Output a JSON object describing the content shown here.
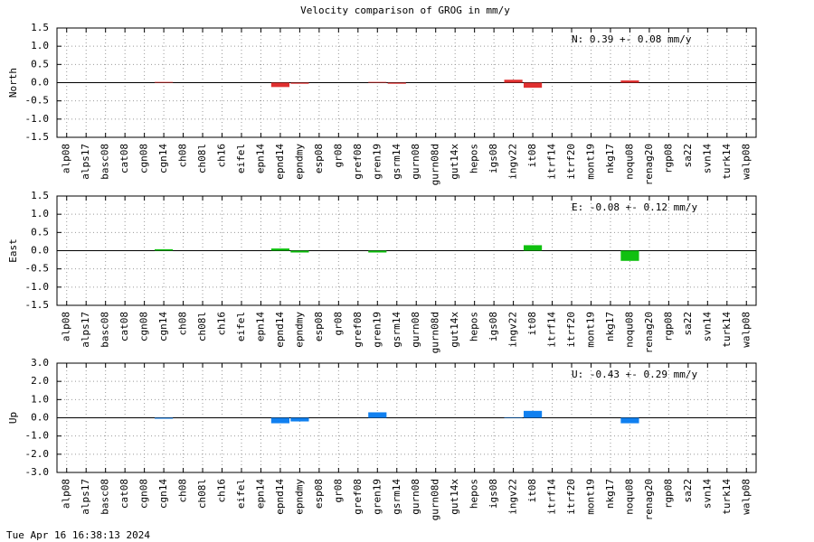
{
  "chart_data": [
    {
      "type": "bar",
      "title": "Velocity comparison of GROG in mm/y",
      "ylabel": "North",
      "annotation": "N:   0.39 +-  0.08 mm/y",
      "categories": [
        "alp08",
        "alps17",
        "basc08",
        "cat08",
        "cgn08",
        "cgn14",
        "ch08",
        "ch08l",
        "ch16",
        "eifel",
        "epn14",
        "epnd14",
        "epndmy",
        "esp08",
        "gr08",
        "gref08",
        "gren19",
        "gsrm14",
        "gurn08",
        "gurn08d",
        "gut14x",
        "hepos",
        "igs08",
        "ingv22",
        "it08",
        "itrf14",
        "itrf20",
        "mont19",
        "nkg17",
        "noqu08",
        "renag20",
        "rgp08",
        "sa22",
        "svn14",
        "turk14",
        "walp08"
      ],
      "values": [
        0,
        0,
        0,
        0,
        0,
        0.02,
        0,
        0,
        0,
        0,
        0,
        -0.12,
        -0.03,
        0,
        0,
        0,
        0.02,
        -0.03,
        0,
        0,
        0,
        0,
        0,
        0.08,
        -0.14,
        0,
        0,
        0,
        0,
        0.06,
        0,
        0,
        0,
        0,
        0,
        0
      ],
      "color": "#e03030",
      "ylim": [
        -1.5,
        1.5
      ],
      "yticks": [
        -1.5,
        {
          "value": -1,
          "label": "-1.0"
        },
        -0.5,
        {
          "value": 0,
          "label": "0.0"
        },
        0.5,
        {
          "value": 1,
          "label": "1.0"
        },
        1.5
      ],
      "grid": true
    },
    {
      "type": "bar",
      "ylabel": "East",
      "annotation": "E:  -0.08 +-  0.12 mm/y",
      "categories": [
        "alp08",
        "alps17",
        "basc08",
        "cat08",
        "cgn08",
        "cgn14",
        "ch08",
        "ch08l",
        "ch16",
        "eifel",
        "epn14",
        "epnd14",
        "epndmy",
        "esp08",
        "gr08",
        "gref08",
        "gren19",
        "gsrm14",
        "gurn08",
        "gurn08d",
        "gut14x",
        "hepos",
        "igs08",
        "ingv22",
        "it08",
        "itrf14",
        "itrf20",
        "mont19",
        "nkg17",
        "noqu08",
        "renag20",
        "rgp08",
        "sa22",
        "svn14",
        "turk14",
        "walp08"
      ],
      "values": [
        0,
        0,
        0,
        0,
        0,
        0.04,
        0,
        0,
        0,
        0,
        0,
        0.06,
        -0.05,
        0,
        0,
        0,
        -0.05,
        0,
        0,
        0,
        0,
        0,
        0,
        0,
        0.15,
        0,
        0,
        0,
        0,
        -0.28,
        0,
        0,
        0,
        0,
        0,
        0
      ],
      "color": "#10c010",
      "ylim": [
        -1.5,
        1.5
      ],
      "yticks": [
        -1.5,
        {
          "value": -1,
          "label": "-1.0"
        },
        -0.5,
        {
          "value": 0,
          "label": "0.0"
        },
        0.5,
        {
          "value": 1,
          "label": "1.0"
        },
        1.5
      ],
      "grid": true
    },
    {
      "type": "bar",
      "ylabel": "Up",
      "annotation": "U:  -0.43 +-  0.29 mm/y",
      "categories": [
        "alp08",
        "alps17",
        "basc08",
        "cat08",
        "cgn08",
        "cgn14",
        "ch08",
        "ch08l",
        "ch16",
        "eifel",
        "epn14",
        "epnd14",
        "epndmy",
        "esp08",
        "gr08",
        "gref08",
        "gren19",
        "gsrm14",
        "gurn08",
        "gurn08d",
        "gut14x",
        "hepos",
        "igs08",
        "ingv22",
        "it08",
        "itrf14",
        "itrf20",
        "mont19",
        "nkg17",
        "noqu08",
        "renag20",
        "rgp08",
        "sa22",
        "svn14",
        "turk14",
        "walp08"
      ],
      "values": [
        0,
        0,
        0,
        0,
        0,
        -0.05,
        0,
        0,
        0,
        0,
        0,
        -0.3,
        -0.2,
        0,
        0,
        0,
        0.3,
        0,
        0,
        0,
        0,
        0,
        0,
        0.03,
        0.38,
        0,
        0,
        0,
        0,
        -0.3,
        0,
        0,
        0,
        0,
        0,
        0
      ],
      "color": "#1080f0",
      "ylim": [
        -3,
        3
      ],
      "yticks": [
        {
          "value": -3,
          "label": "-3.0"
        },
        {
          "value": -2,
          "label": "-2.0"
        },
        {
          "value": -1,
          "label": "-1.0"
        },
        {
          "value": 0,
          "label": "0.0"
        },
        {
          "value": 1,
          "label": "1.0"
        },
        {
          "value": 2,
          "label": "2.0"
        },
        {
          "value": 3,
          "label": "3.0"
        }
      ],
      "grid": true
    }
  ],
  "footer": "Tue Apr 16 16:38:13 2024"
}
